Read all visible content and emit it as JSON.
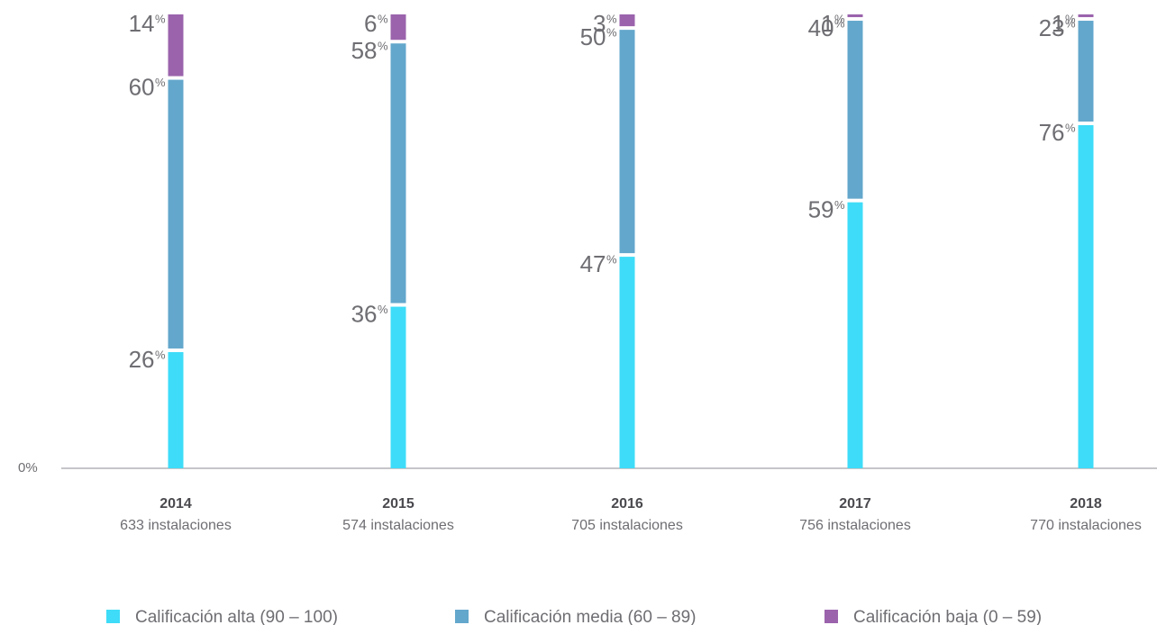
{
  "chart_data": {
    "type": "stacked-bar",
    "categories": [
      "2014",
      "2015",
      "2016",
      "2017",
      "2018"
    ],
    "category_sublabels": [
      "633 instalaciones",
      "574 instalaciones",
      "705 instalaciones",
      "756 instalaciones",
      "770 instalaciones"
    ],
    "value_suffix": "%",
    "series": [
      {
        "name": "Calificación alta (90 – 100)",
        "color": "#3edcf8",
        "values": [
          26,
          36,
          47,
          59,
          76
        ]
      },
      {
        "name": "Calificación media (60 – 89)",
        "color": "#63a7cc",
        "values": [
          60,
          58,
          50,
          40,
          23
        ]
      },
      {
        "name": "Calificación baja (0 – 59)",
        "color": "#9b63ac",
        "values": [
          14,
          6,
          3,
          1,
          1
        ]
      }
    ],
    "ylim": [
      0,
      100
    ],
    "yticks": [
      {
        "value": 0,
        "label": "0%"
      }
    ]
  }
}
